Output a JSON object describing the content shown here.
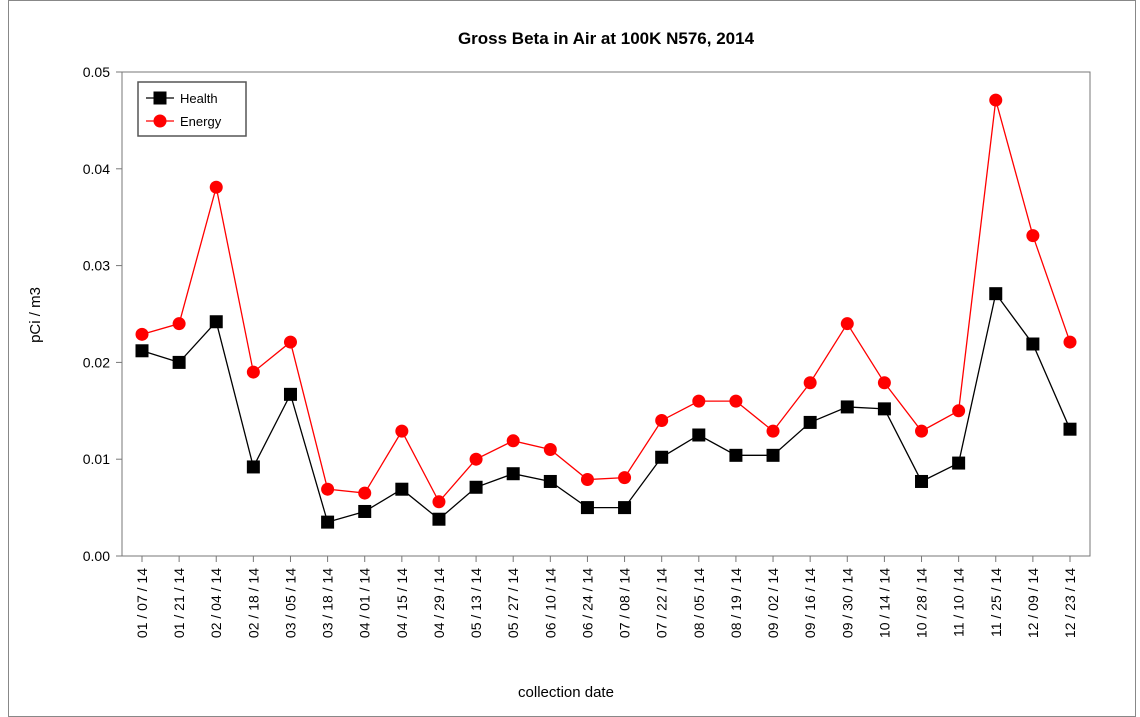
{
  "chart_data": {
    "type": "line",
    "title": "Gross Beta in Air at 100K N576, 2014",
    "x_label": "collection date",
    "y_label": "pCi / m3",
    "categories": [
      "01 / 07 / 14",
      "01 / 21 / 14",
      "02 / 04 / 14",
      "02 / 18 / 14",
      "03 / 05 / 14",
      "03 / 18 / 14",
      "04 / 01 / 14",
      "04 / 15 / 14",
      "04 / 29 / 14",
      "05 / 13 / 14",
      "05 / 27 / 14",
      "06 / 10 / 14",
      "06 / 24 / 14",
      "07 / 08 / 14",
      "07 / 22 / 14",
      "08 / 05 / 14",
      "08 / 19 / 14",
      "09 / 02 / 14",
      "09 / 16 / 14",
      "09 / 30 / 14",
      "10 / 14 / 14",
      "10 / 28 / 14",
      "11 / 10 / 14",
      "11 / 25 / 14",
      "12 / 09 / 14",
      "12 / 23 / 14"
    ],
    "series": [
      {
        "name": "Health",
        "color": "#000000",
        "marker": "square",
        "values": [
          0.0212,
          0.02,
          0.0242,
          0.0092,
          0.0167,
          0.0035,
          0.0046,
          0.0069,
          0.0038,
          0.0071,
          0.0085,
          0.0077,
          0.005,
          0.005,
          0.0102,
          0.0125,
          0.0104,
          0.0104,
          0.0138,
          0.0154,
          0.0152,
          0.0077,
          0.0096,
          0.0271,
          0.0219,
          0.0131
        ]
      },
      {
        "name": "Energy",
        "color": "#ff0000",
        "marker": "circle",
        "values": [
          0.0229,
          0.024,
          0.0381,
          0.019,
          0.0221,
          0.0069,
          0.0065,
          0.0129,
          0.0056,
          0.01,
          0.0119,
          0.011,
          0.0079,
          0.0081,
          0.014,
          0.016,
          0.016,
          0.0129,
          0.0179,
          0.024,
          0.0179,
          0.0129,
          0.015,
          0.0471,
          0.0331,
          0.0221
        ]
      }
    ],
    "ylim": [
      0,
      0.05
    ],
    "yticks": [
      {
        "value": 0,
        "label": "0.00"
      },
      0.01,
      0.02,
      0.03,
      0.04,
      0.05
    ],
    "legend": "top-left"
  }
}
